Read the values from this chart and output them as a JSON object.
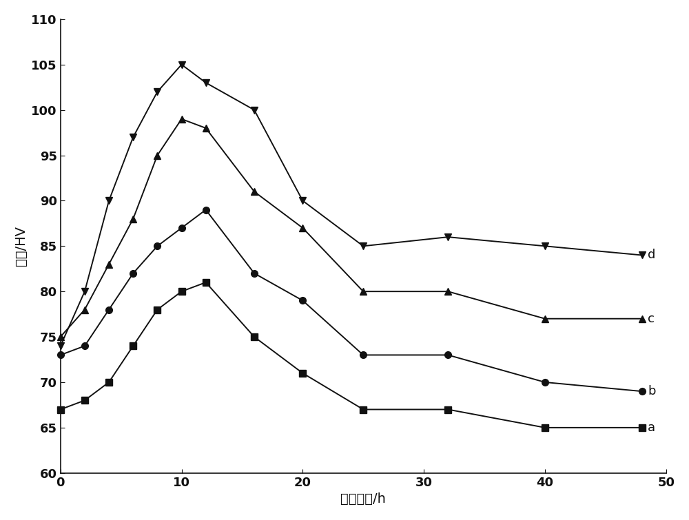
{
  "series_a": {
    "label": "a",
    "marker": "s",
    "x": [
      0,
      2,
      4,
      6,
      8,
      10,
      12,
      16,
      20,
      25,
      32,
      40,
      48
    ],
    "y": [
      67,
      68,
      70,
      74,
      78,
      80,
      81,
      75,
      71,
      67,
      67,
      65,
      65
    ]
  },
  "series_b": {
    "label": "b",
    "marker": "o",
    "x": [
      0,
      2,
      4,
      6,
      8,
      10,
      12,
      16,
      20,
      25,
      32,
      40,
      48
    ],
    "y": [
      73,
      74,
      78,
      82,
      85,
      87,
      89,
      82,
      79,
      73,
      73,
      70,
      69
    ]
  },
  "series_c": {
    "label": "c",
    "marker": "^",
    "x": [
      0,
      2,
      4,
      6,
      8,
      10,
      12,
      16,
      20,
      25,
      32,
      40,
      48
    ],
    "y": [
      75,
      78,
      83,
      88,
      95,
      99,
      98,
      91,
      87,
      80,
      80,
      77,
      77
    ]
  },
  "series_d": {
    "label": "d",
    "marker": "v",
    "x": [
      0,
      2,
      4,
      6,
      8,
      10,
      12,
      16,
      20,
      25,
      32,
      40,
      48
    ],
    "y": [
      74,
      80,
      90,
      97,
      102,
      105,
      103,
      100,
      90,
      85,
      86,
      85,
      84
    ]
  },
  "xlabel": "时效时间/h",
  "ylabel": "硬度/HV",
  "xlim": [
    0,
    50
  ],
  "ylim": [
    60,
    110
  ],
  "xticks": [
    0,
    10,
    20,
    30,
    40,
    50
  ],
  "yticks": [
    60,
    65,
    70,
    75,
    80,
    85,
    90,
    95,
    100,
    105,
    110
  ],
  "color": "#111111",
  "linewidth": 1.4,
  "markersize": 7,
  "label_fontsize": 14,
  "tick_fontsize": 13,
  "annot_fontsize": 13,
  "background_color": "#ffffff",
  "fig_background": "#ffffff"
}
